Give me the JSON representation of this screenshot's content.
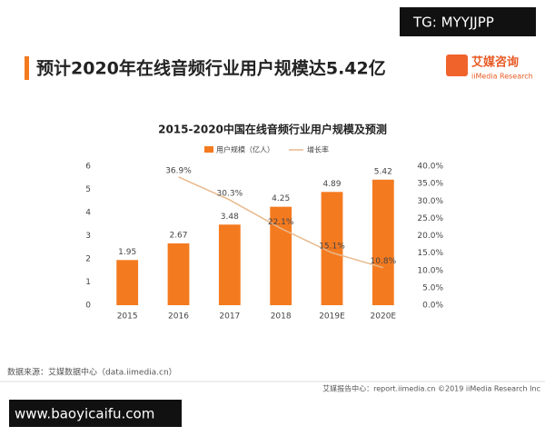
{
  "header": {
    "title": "预计2020年在线音频行业用户规模达5.42亿",
    "logo_name": "艾媒咨询",
    "logo_sub": "iiMedia Research"
  },
  "watermark_top": "TG: MYYJJPP",
  "watermark_bottom": "www.baoyicaifu.com",
  "footer": {
    "source": "数据来源：艾媒数据中心（data.iimedia.cn）",
    "credit": "艾媒报告中心：report.iimedia.cn  ©2019  iiMedia Research  Inc"
  },
  "chart_data": {
    "type": "bar",
    "title": "2015-2020中国在线音频行业用户规模及预测",
    "categories": [
      "2015",
      "2016",
      "2017",
      "2018",
      "2019E",
      "2020E"
    ],
    "series": [
      {
        "name": "用户规模（亿人）",
        "color": "#f47a20",
        "values": [
          1.95,
          2.67,
          3.48,
          4.25,
          4.89,
          5.42
        ]
      },
      {
        "name": "增长率",
        "color": "#e9b98c",
        "type": "line",
        "axis": "y2",
        "values": [
          null,
          36.9,
          30.3,
          22.1,
          15.1,
          10.8
        ],
        "value_labels": [
          null,
          "36.9%",
          "30.3%",
          "22.1%",
          "15.1%",
          "10.8%"
        ]
      }
    ],
    "ylim": [
      0,
      6
    ],
    "yticks": [
      0,
      1,
      2,
      3,
      4,
      5,
      6
    ],
    "y2lim": [
      0,
      40
    ],
    "y2ticks": [
      {
        "value": 0,
        "label": "0.0%"
      },
      {
        "value": 5,
        "label": "5.0%"
      },
      {
        "value": 10,
        "label": "10.0%"
      },
      {
        "value": 15,
        "label": "15.0%"
      },
      {
        "value": 20,
        "label": "20.0%"
      },
      {
        "value": 25,
        "label": "25.0%"
      },
      {
        "value": 30,
        "label": "30.0%"
      },
      {
        "value": 35,
        "label": "35.0%"
      },
      {
        "value": 40,
        "label": "40.0%"
      }
    ],
    "grid": false
  }
}
